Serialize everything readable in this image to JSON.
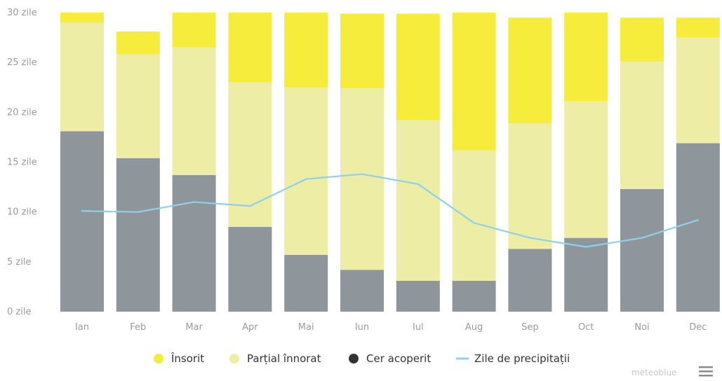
{
  "chart_data": {
    "type": "bar",
    "stacked": true,
    "categories": [
      "Ian",
      "Feb",
      "Mar",
      "Apr",
      "Mai",
      "Iun",
      "Iul",
      "Aug",
      "Sep",
      "Oct",
      "Noi",
      "Dec"
    ],
    "y_tick_labels": [
      "0 zile",
      "5 zile",
      "10 zile",
      "15 zile",
      "20 zile",
      "25 zile",
      "30 zile"
    ],
    "ylim": [
      0,
      30
    ],
    "grid": false,
    "legend_position": "bottom-center",
    "series": [
      {
        "name": "Cer acoperit",
        "kind": "bar",
        "color": "#8e969b",
        "values": [
          18.1,
          15.4,
          13.7,
          8.5,
          5.7,
          4.2,
          3.1,
          3.1,
          6.3,
          7.4,
          12.3,
          16.9
        ]
      },
      {
        "name": "Parțial înnorat",
        "kind": "bar",
        "color": "#eeeda6",
        "values": [
          10.9,
          10.4,
          12.8,
          14.5,
          16.8,
          18.2,
          16.1,
          13.1,
          12.6,
          13.7,
          12.8,
          10.6
        ]
      },
      {
        "name": "Însorit",
        "kind": "bar",
        "color": "#f5ec3b",
        "values": [
          1.0,
          2.3,
          3.5,
          7.0,
          7.5,
          7.5,
          10.7,
          13.8,
          10.6,
          8.9,
          4.4,
          2.0
        ]
      },
      {
        "name": "Zile de precipitații",
        "kind": "line",
        "color": "#8fd0ec",
        "values": [
          10.1,
          10.0,
          11.0,
          10.6,
          13.3,
          13.8,
          12.8,
          8.9,
          7.4,
          6.5,
          7.4,
          9.2
        ]
      }
    ],
    "legend": [
      {
        "label": "Însorit",
        "marker": "dot",
        "color": "#f5ec3b"
      },
      {
        "label": "Parțial înnorat",
        "marker": "dot",
        "color": "#eeeda6"
      },
      {
        "label": "Cer acoperit",
        "marker": "dot",
        "color": "#333333"
      },
      {
        "label": "Zile de precipitații",
        "marker": "line",
        "color": "#8fd0ec"
      }
    ]
  },
  "branding": {
    "text": "meteoblue",
    "menu_icon": "hamburger-menu-icon"
  }
}
